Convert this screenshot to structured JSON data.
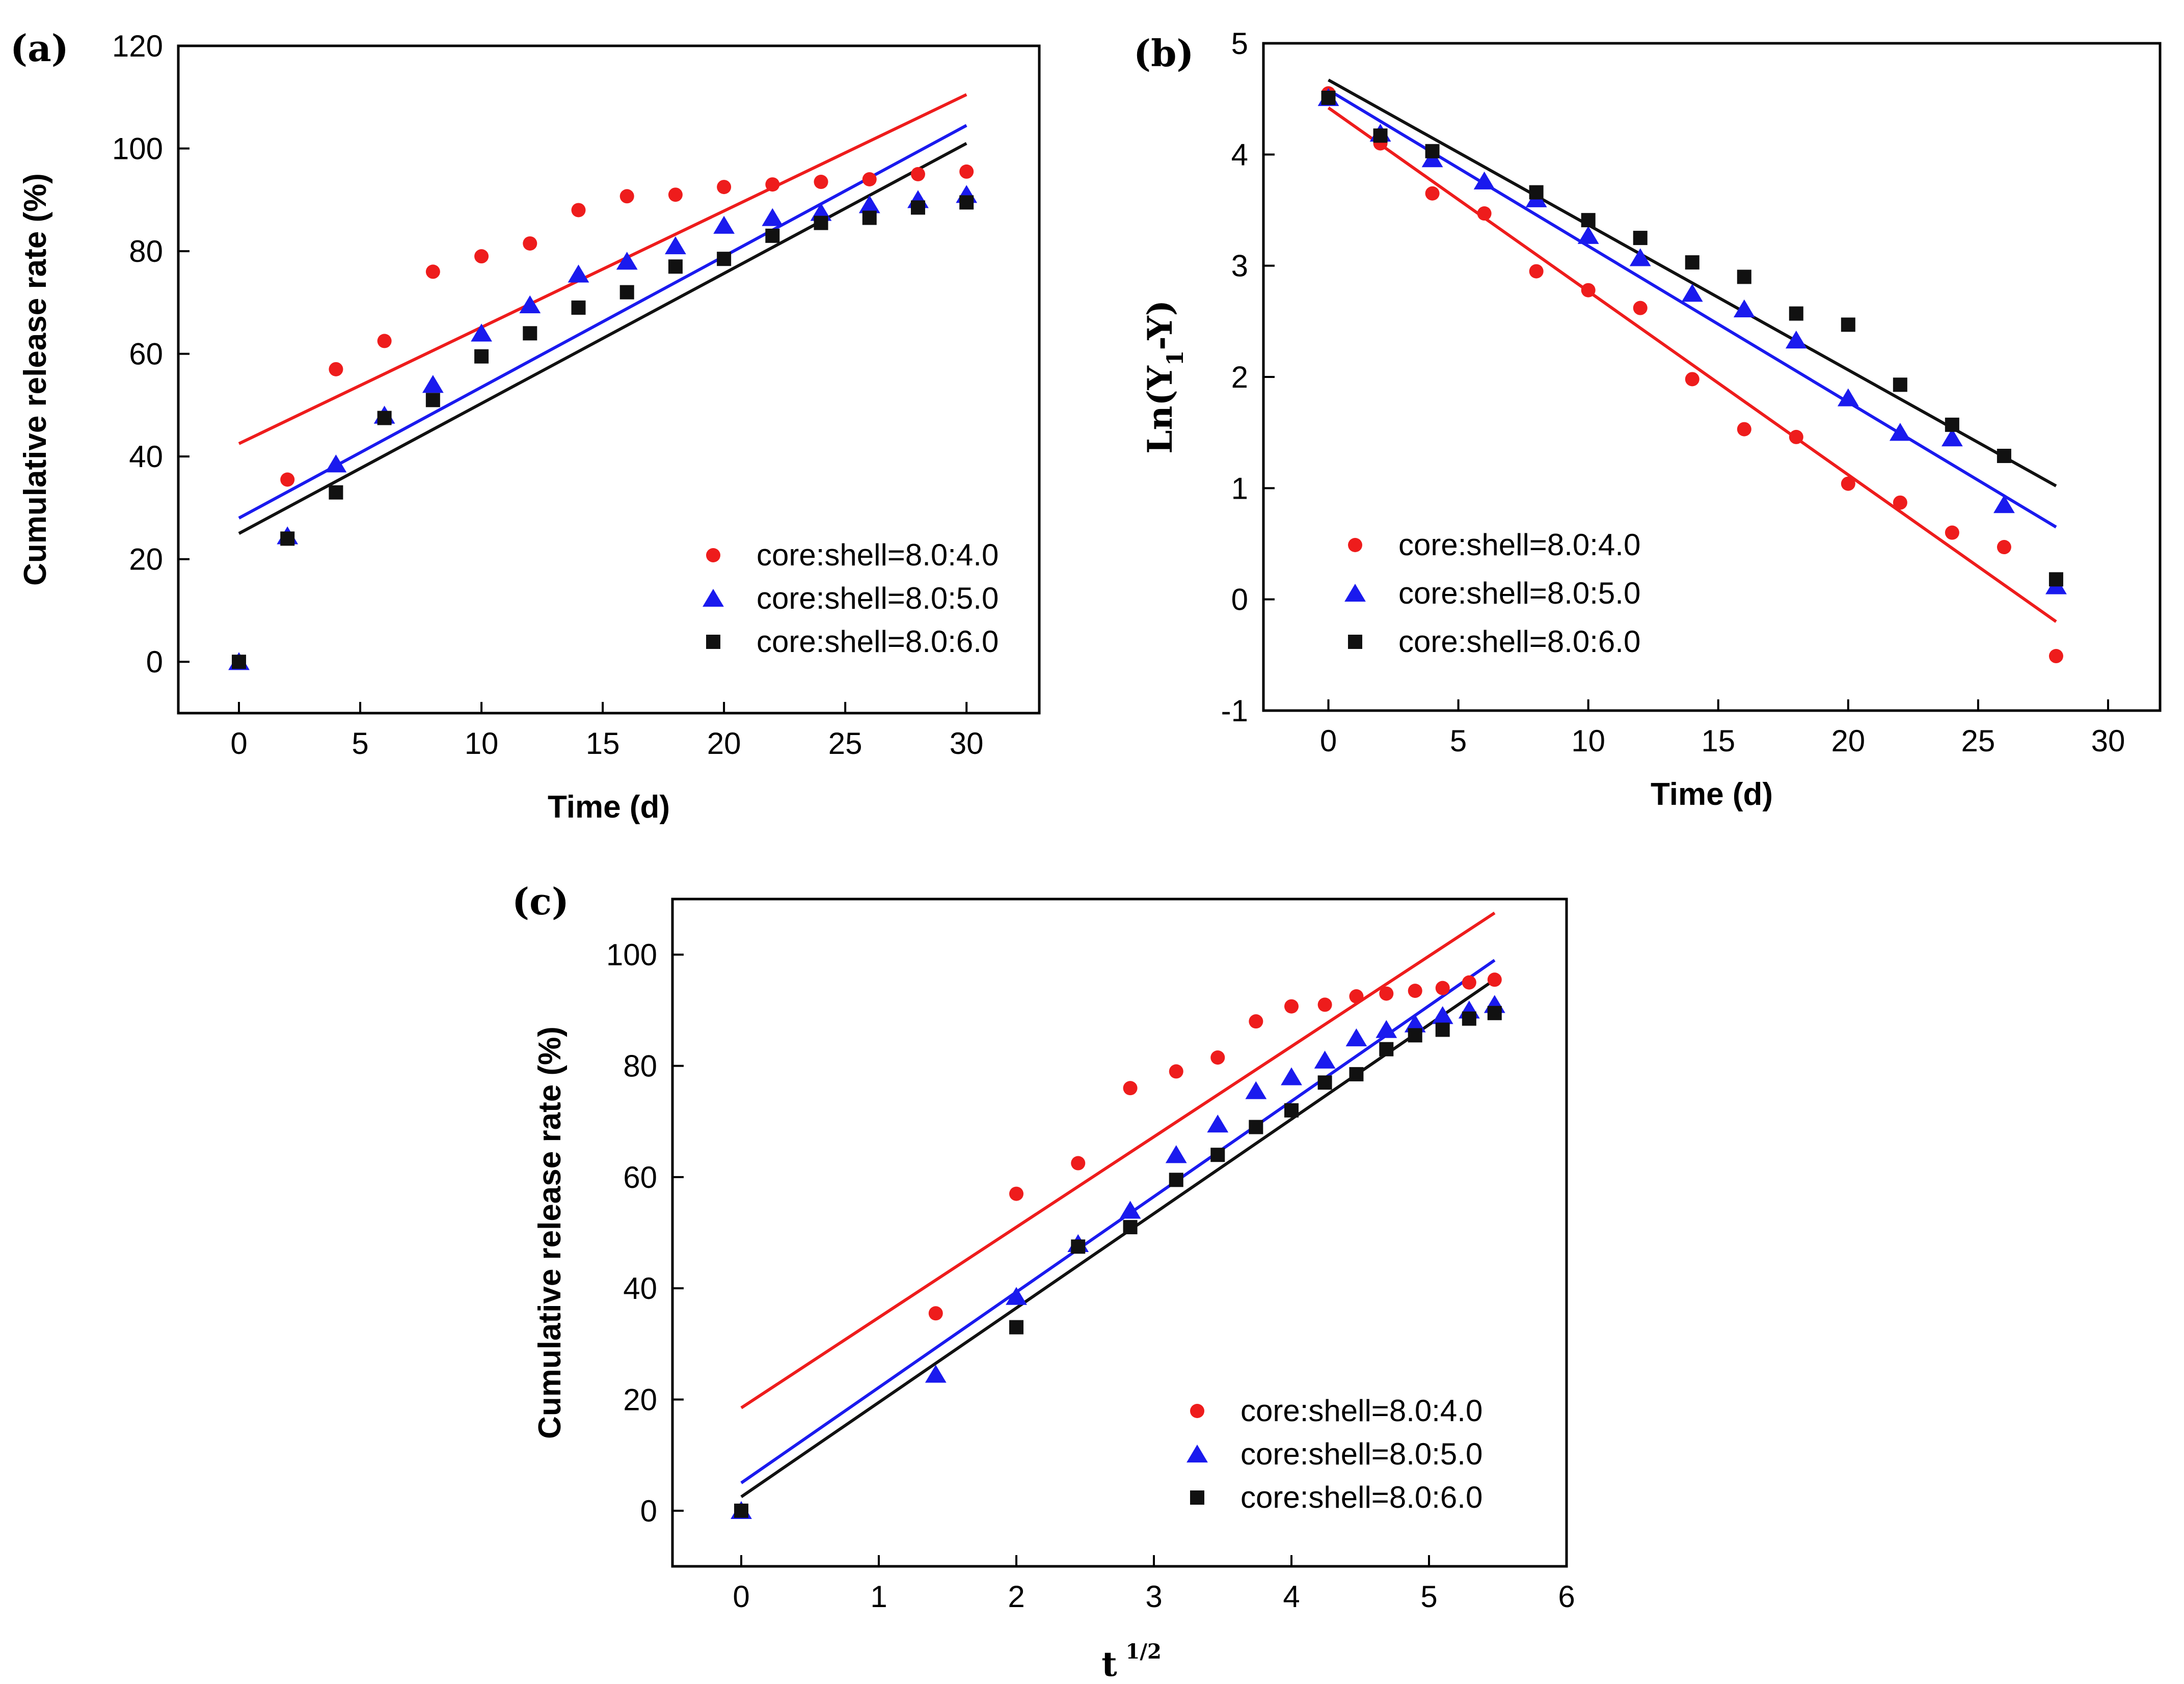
{
  "chart_data": [
    {
      "id": "a",
      "type": "scatter",
      "panel_label": "(a)",
      "xlabel": "Time (d)",
      "ylabel": "Cumulative release rate (%)",
      "xlim": [
        -2.5,
        33
      ],
      "ylim": [
        -10,
        120
      ],
      "xticks": [
        0,
        5,
        10,
        15,
        20,
        25,
        30
      ],
      "yticks": [
        0,
        20,
        40,
        60,
        80,
        100,
        120
      ],
      "legend_position": "bottom-right",
      "series": [
        {
          "name": "core:shell=8.0:4.0",
          "color": "#ee1c1c",
          "marker": "circle",
          "x": [
            2,
            4,
            6,
            8,
            10,
            12,
            14,
            16,
            18,
            20,
            22,
            24,
            26,
            28,
            30
          ],
          "y": [
            35.5,
            57,
            62.5,
            76,
            79,
            81.5,
            88,
            90.7,
            91,
            92.5,
            93,
            93.5,
            94,
            95,
            95.5
          ],
          "fit": {
            "x": [
              0,
              30
            ],
            "y": [
              42.5,
              110.5
            ]
          }
        },
        {
          "name": "core:shell=8.0:5.0",
          "color": "#1a1aee",
          "marker": "triangle",
          "x": [
            0,
            2,
            4,
            6,
            8,
            10,
            12,
            14,
            16,
            18,
            20,
            22,
            24,
            26,
            28,
            30
          ],
          "y": [
            0,
            24.5,
            38.5,
            48,
            54,
            64,
            69.5,
            75.5,
            78,
            81,
            85,
            86.5,
            87.5,
            89,
            90,
            91
          ],
          "fit": {
            "x": [
              0,
              30
            ],
            "y": [
              28,
              104.5
            ]
          }
        },
        {
          "name": "core:shell=8.0:6.0",
          "color": "#111111",
          "marker": "square",
          "x": [
            0,
            2,
            4,
            6,
            8,
            10,
            12,
            14,
            16,
            18,
            20,
            22,
            24,
            26,
            28,
            30
          ],
          "y": [
            0,
            24,
            33,
            47.5,
            51,
            59.5,
            64,
            69,
            72,
            77,
            78.5,
            83,
            85.5,
            86.5,
            88.5,
            89.5
          ],
          "fit": {
            "x": [
              0,
              30
            ],
            "y": [
              25,
              101
            ]
          }
        }
      ]
    },
    {
      "id": "b",
      "type": "scatter",
      "panel_label": "(b)",
      "xlabel": "Time (d)",
      "ylabel": "Ln(Y",
      "ylabel_sub": "1",
      "ylabel_end": "-Y)",
      "xlim": [
        -2.5,
        32
      ],
      "ylim": [
        -1,
        5
      ],
      "xticks": [
        0,
        5,
        10,
        15,
        20,
        25,
        30
      ],
      "yticks": [
        -1,
        0,
        1,
        2,
        3,
        4,
        5
      ],
      "legend_position": "bottom-left",
      "series": [
        {
          "name": "core:shell=8.0:4.0",
          "color": "#ee1c1c",
          "marker": "circle",
          "x": [
            0,
            2,
            4,
            6,
            8,
            10,
            12,
            14,
            16,
            18,
            20,
            22,
            24,
            26,
            28
          ],
          "y": [
            4.55,
            4.1,
            3.65,
            3.47,
            2.95,
            2.78,
            2.62,
            1.98,
            1.53,
            1.46,
            1.04,
            0.87,
            0.6,
            0.47,
            -0.51
          ],
          "fit": {
            "x": [
              0,
              28
            ],
            "y": [
              4.42,
              -0.2
            ]
          }
        },
        {
          "name": "core:shell=8.0:5.0",
          "color": "#1a1aee",
          "marker": "triangle",
          "x": [
            0,
            2,
            4,
            6,
            8,
            10,
            12,
            14,
            16,
            18,
            20,
            22,
            24,
            26,
            28
          ],
          "y": [
            4.51,
            4.19,
            3.96,
            3.76,
            3.6,
            3.27,
            3.07,
            2.75,
            2.61,
            2.33,
            1.81,
            1.5,
            1.45,
            0.85,
            0.12
          ],
          "fit": {
            "x": [
              0,
              28
            ],
            "y": [
              4.58,
              0.65
            ]
          }
        },
        {
          "name": "core:shell=8.0:6.0",
          "color": "#111111",
          "marker": "square",
          "x": [
            0,
            2,
            4,
            8,
            10,
            12,
            14,
            16,
            18,
            20,
            22,
            24,
            26,
            28
          ],
          "y": [
            4.51,
            4.17,
            4.03,
            3.66,
            3.41,
            3.25,
            3.03,
            2.9,
            2.57,
            2.47,
            1.93,
            1.57,
            1.29,
            0.18
          ],
          "fit": {
            "x": [
              0,
              28
            ],
            "y": [
              4.67,
              1.02
            ]
          }
        }
      ]
    },
    {
      "id": "c",
      "type": "scatter",
      "panel_label": "(c)",
      "xlabel": "t",
      "xlabel_sup": "1/2",
      "ylabel": "Cumulative release rate (%)",
      "xlim": [
        -0.5,
        6
      ],
      "ylim": [
        -10,
        110
      ],
      "xticks": [
        0,
        1,
        2,
        3,
        4,
        5,
        6
      ],
      "yticks": [
        0,
        20,
        40,
        60,
        80,
        100
      ],
      "legend_position": "bottom-right",
      "series": [
        {
          "name": "core:shell=8.0:4.0",
          "color": "#ee1c1c",
          "marker": "circle",
          "x": [
            1.414,
            2,
            2.449,
            2.828,
            3.162,
            3.464,
            3.742,
            4,
            4.243,
            4.472,
            4.69,
            4.899,
            5.099,
            5.292,
            5.477
          ],
          "y": [
            35.5,
            57,
            62.5,
            76,
            79,
            81.5,
            88,
            90.7,
            91,
            92.5,
            93,
            93.5,
            94,
            95,
            95.5
          ],
          "fit": {
            "x": [
              0,
              5.477
            ],
            "y": [
              18.5,
              107.5
            ]
          }
        },
        {
          "name": "core:shell=8.0:5.0",
          "color": "#1a1aee",
          "marker": "triangle",
          "x": [
            0,
            1.414,
            2,
            2.449,
            2.828,
            3.162,
            3.464,
            3.742,
            4,
            4.243,
            4.472,
            4.69,
            4.899,
            5.099,
            5.292,
            5.477
          ],
          "y": [
            0,
            24.5,
            38.5,
            48,
            54,
            64,
            69.5,
            75.5,
            78,
            81,
            85,
            86.5,
            87.5,
            89,
            90,
            91
          ],
          "fit": {
            "x": [
              0,
              5.477
            ],
            "y": [
              5,
              99
            ]
          }
        },
        {
          "name": "core:shell=8.0:6.0",
          "color": "#111111",
          "marker": "square",
          "x": [
            0,
            2,
            2.449,
            2.828,
            3.162,
            3.464,
            3.742,
            4,
            4.243,
            4.472,
            4.69,
            4.899,
            5.099,
            5.292,
            5.477
          ],
          "y": [
            0,
            33,
            47.5,
            51,
            59.5,
            64,
            69,
            72,
            77,
            78.5,
            83,
            85.5,
            86.5,
            88.5,
            89.5
          ],
          "fit": {
            "x": [
              0,
              5.477
            ],
            "y": [
              2.5,
              95.5
            ]
          }
        }
      ]
    }
  ]
}
